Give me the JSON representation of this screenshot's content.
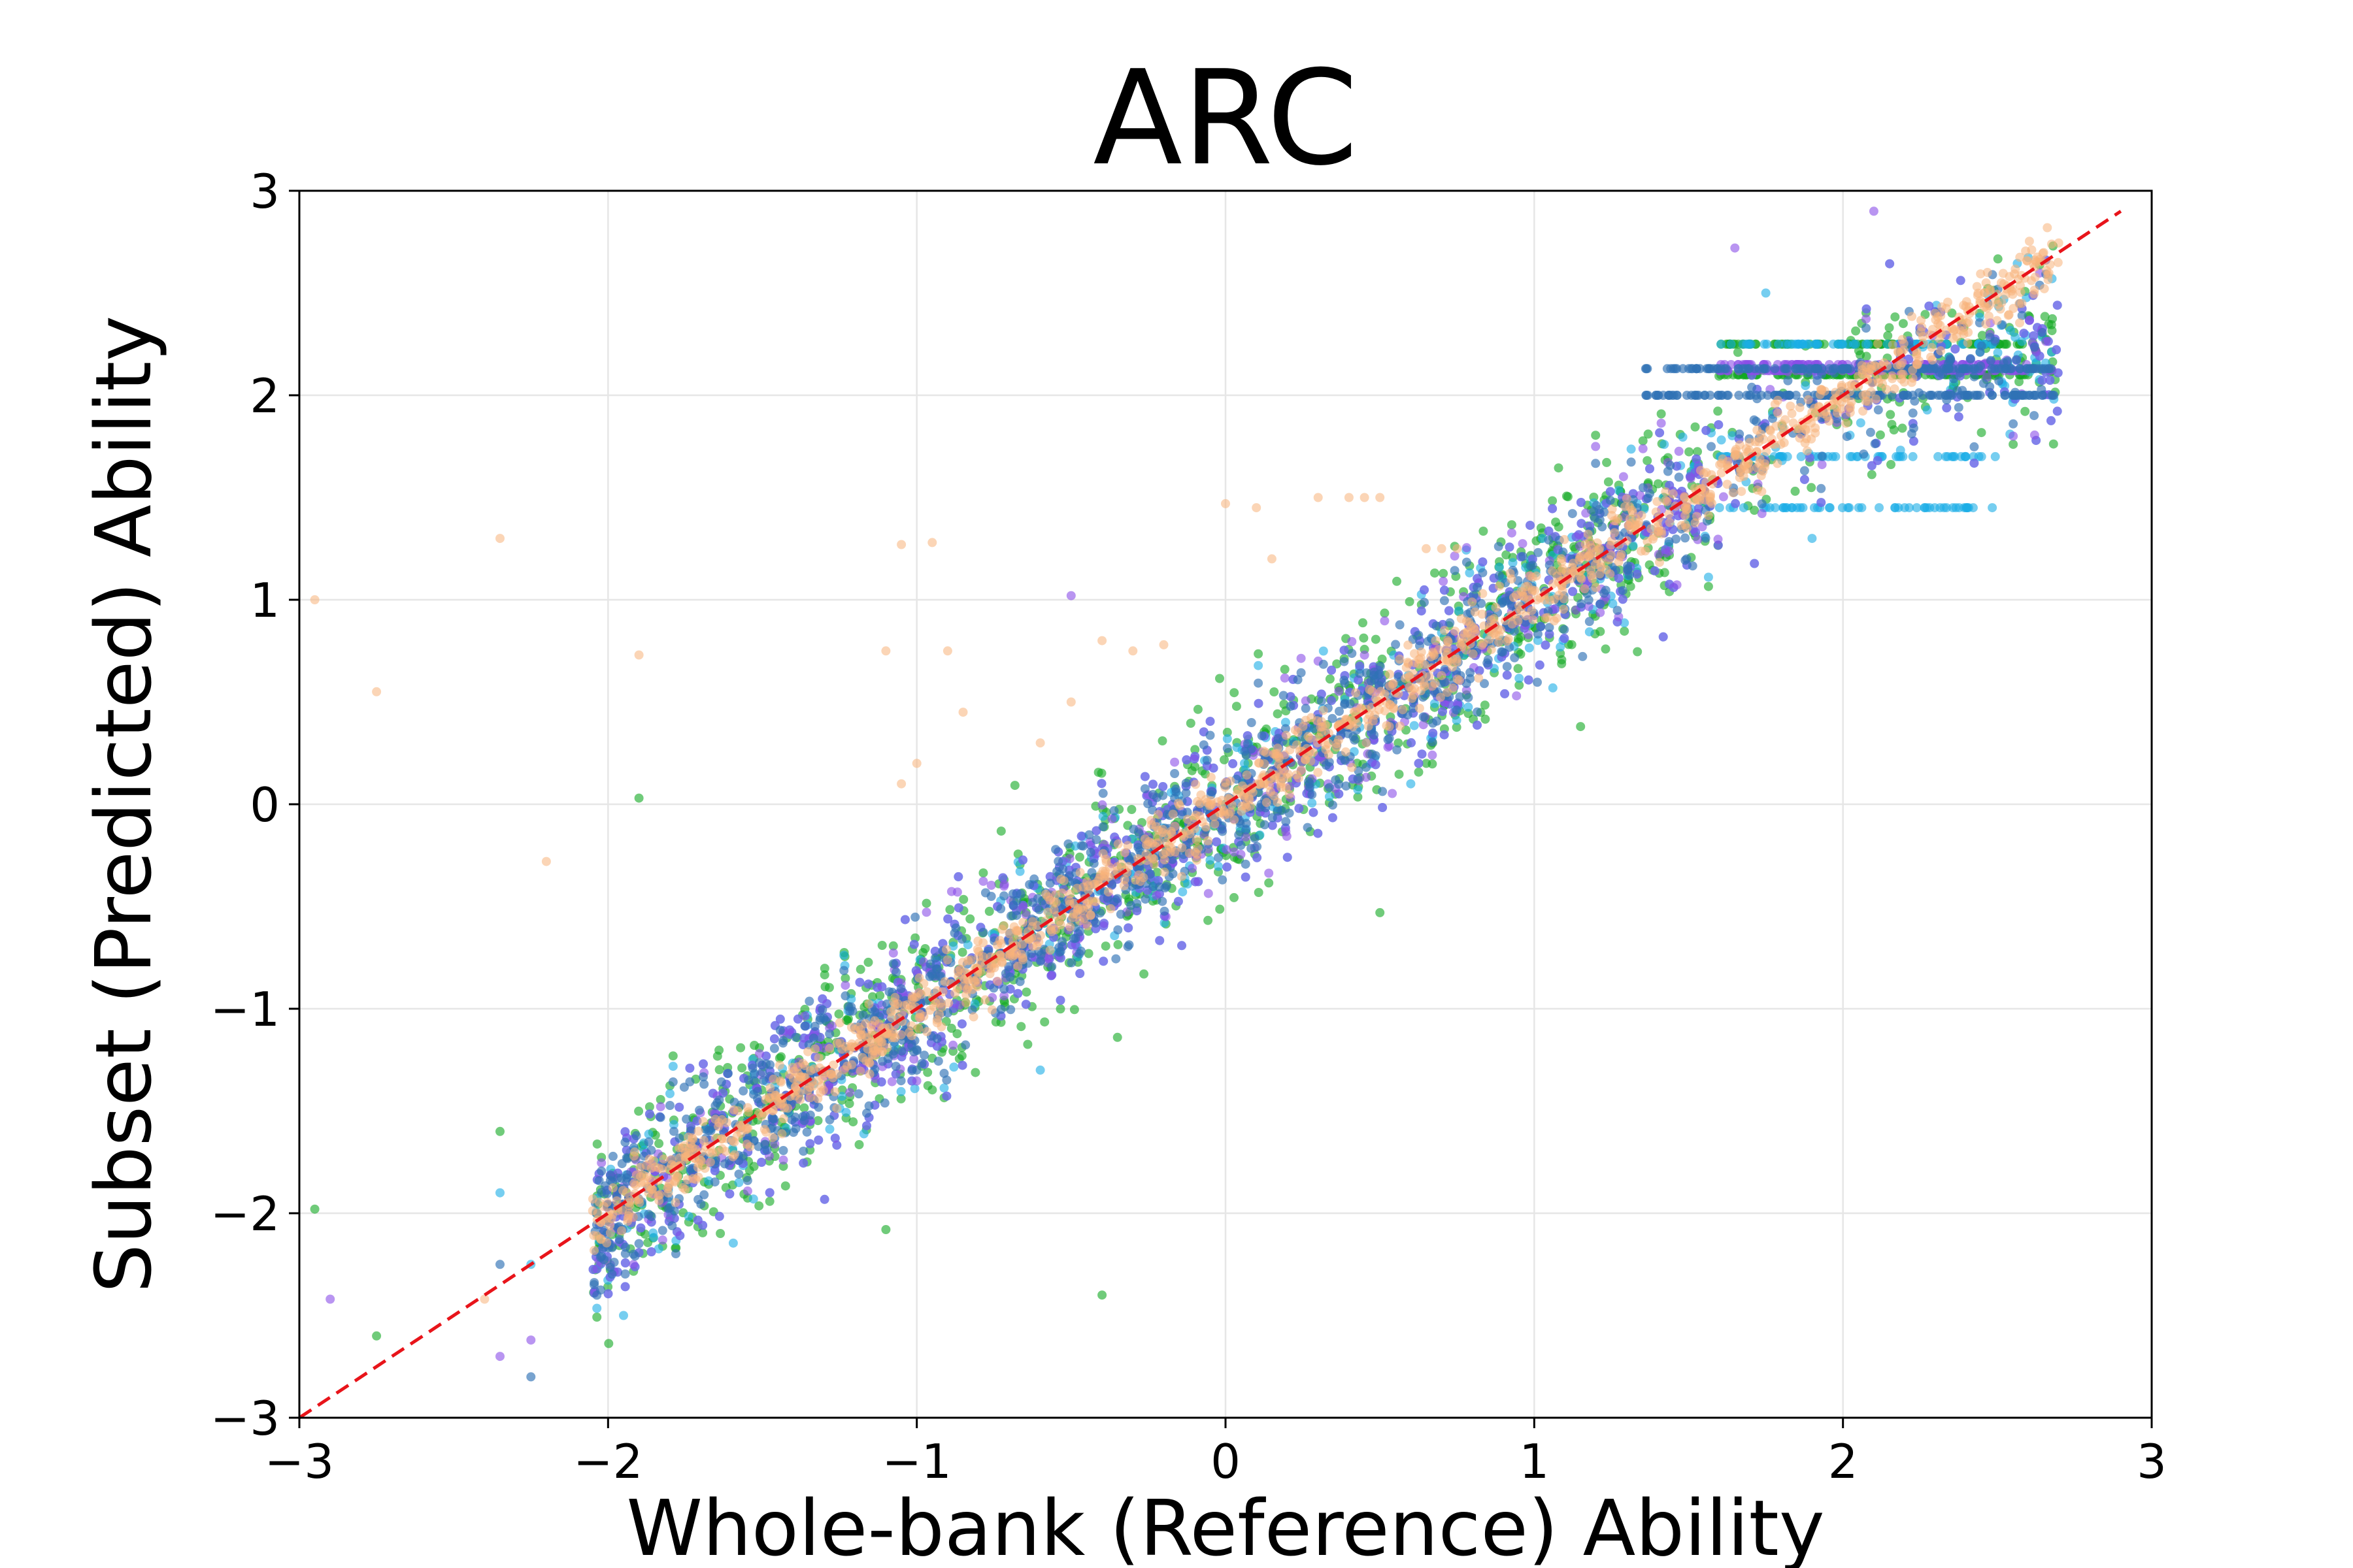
{
  "chart_data": {
    "type": "scatter",
    "title": "ARC",
    "xlabel": "Whole-bank (Reference) Ability",
    "ylabel": "Subset (Predicted) Ability",
    "xlim": [
      -3,
      3
    ],
    "ylim": [
      -3,
      3
    ],
    "xticks": [
      -3,
      -2,
      -1,
      0,
      1,
      2,
      3
    ],
    "yticks": [
      -3,
      -2,
      -1,
      0,
      1,
      2,
      3
    ],
    "xtick_labels": [
      "−3",
      "−2",
      "−1",
      "0",
      "1",
      "2",
      "3"
    ],
    "ytick_labels": [
      "−3",
      "−2",
      "−1",
      "0",
      "1",
      "2",
      "3"
    ],
    "grid": true,
    "legend": "none",
    "reference_line": {
      "x": [
        -3,
        2.9
      ],
      "y": [
        -3,
        2.9
      ],
      "style": "dashed",
      "color": "#e8141a"
    },
    "series": [
      {
        "color": "#11a822",
        "alpha": 0.6,
        "center_x": [
          -2.05,
          2.7
        ],
        "spread": 0.22,
        "cap": {
          "x_from": 1.6,
          "x_to": 2.6,
          "levels": [
            2.25,
            2.1
          ]
        },
        "outliers": [
          [
            -2.95,
            -1.98
          ],
          [
            -2.35,
            -1.6
          ],
          [
            -1.9,
            0.03
          ],
          [
            -1.1,
            -2.08
          ],
          [
            -0.35,
            -1.14
          ],
          [
            0.5,
            -0.53
          ],
          [
            1.15,
            0.38
          ],
          [
            -2.75,
            -2.6
          ],
          [
            -0.4,
            -2.4
          ]
        ]
      },
      {
        "color": "#1aaee6",
        "alpha": 0.6,
        "center_x": [
          -2.05,
          2.7
        ],
        "spread": 0.2,
        "cap": {
          "x_from": 1.6,
          "x_to": 2.5,
          "levels": [
            1.7,
            1.45,
            2.25
          ]
        },
        "outliers": [
          [
            -2.35,
            -1.9
          ],
          [
            -2.25,
            -2.25
          ],
          [
            -1.95,
            -2.5
          ],
          [
            -0.6,
            -1.3
          ],
          [
            0.6,
            0.1
          ],
          [
            1.9,
            1.3
          ],
          [
            1.75,
            2.5
          ]
        ]
      },
      {
        "color": "#8a4ee8",
        "alpha": 0.6,
        "center_x": [
          -2.05,
          2.7
        ],
        "spread": 0.2,
        "cap": {
          "x_from": 1.6,
          "x_to": 2.6,
          "levels": [
            2.12,
            2.15
          ]
        },
        "outliers": [
          [
            -2.9,
            -2.42
          ],
          [
            -2.35,
            -2.7
          ],
          [
            -2.25,
            -2.62
          ],
          [
            -0.5,
            1.02
          ],
          [
            0.3,
            0.7
          ],
          [
            1.65,
            2.72
          ],
          [
            2.1,
            2.9
          ]
        ]
      },
      {
        "color": "#2f72b5",
        "alpha": 0.65,
        "center_x": [
          -2.05,
          2.7
        ],
        "spread": 0.17,
        "cap": {
          "x_from": 1.35,
          "x_to": 2.7,
          "levels": [
            2.0,
            2.13
          ]
        },
        "outliers": [
          [
            -2.25,
            -2.8
          ],
          [
            -2.35,
            -2.25
          ],
          [
            -1.0,
            -1.2
          ]
        ]
      },
      {
        "color": "#f7b27a",
        "alpha": 0.55,
        "center_x": [
          -2.05,
          2.7
        ],
        "spread": 0.07,
        "steps": true,
        "outliers": [
          [
            -2.95,
            1.0
          ],
          [
            -2.75,
            0.55
          ],
          [
            -2.35,
            1.3
          ],
          [
            -1.9,
            0.73
          ],
          [
            -2.2,
            -0.28
          ],
          [
            -1.05,
            1.27
          ],
          [
            -0.95,
            1.28
          ],
          [
            -1.1,
            0.75
          ],
          [
            -0.9,
            0.75
          ],
          [
            -0.85,
            0.45
          ],
          [
            -1.0,
            0.2
          ],
          [
            -1.05,
            0.1
          ],
          [
            0.0,
            1.47
          ],
          [
            0.1,
            1.45
          ],
          [
            0.3,
            1.5
          ],
          [
            0.4,
            1.5
          ],
          [
            0.45,
            1.5
          ],
          [
            0.5,
            1.5
          ],
          [
            0.15,
            1.2
          ],
          [
            0.65,
            1.25
          ],
          [
            0.7,
            1.25
          ],
          [
            0.75,
            1.25
          ],
          [
            -0.2,
            0.78
          ],
          [
            -0.3,
            0.75
          ],
          [
            -0.4,
            0.8
          ],
          [
            -2.4,
            -2.42
          ],
          [
            -0.5,
            0.5
          ],
          [
            -0.6,
            0.3
          ]
        ]
      }
    ]
  }
}
